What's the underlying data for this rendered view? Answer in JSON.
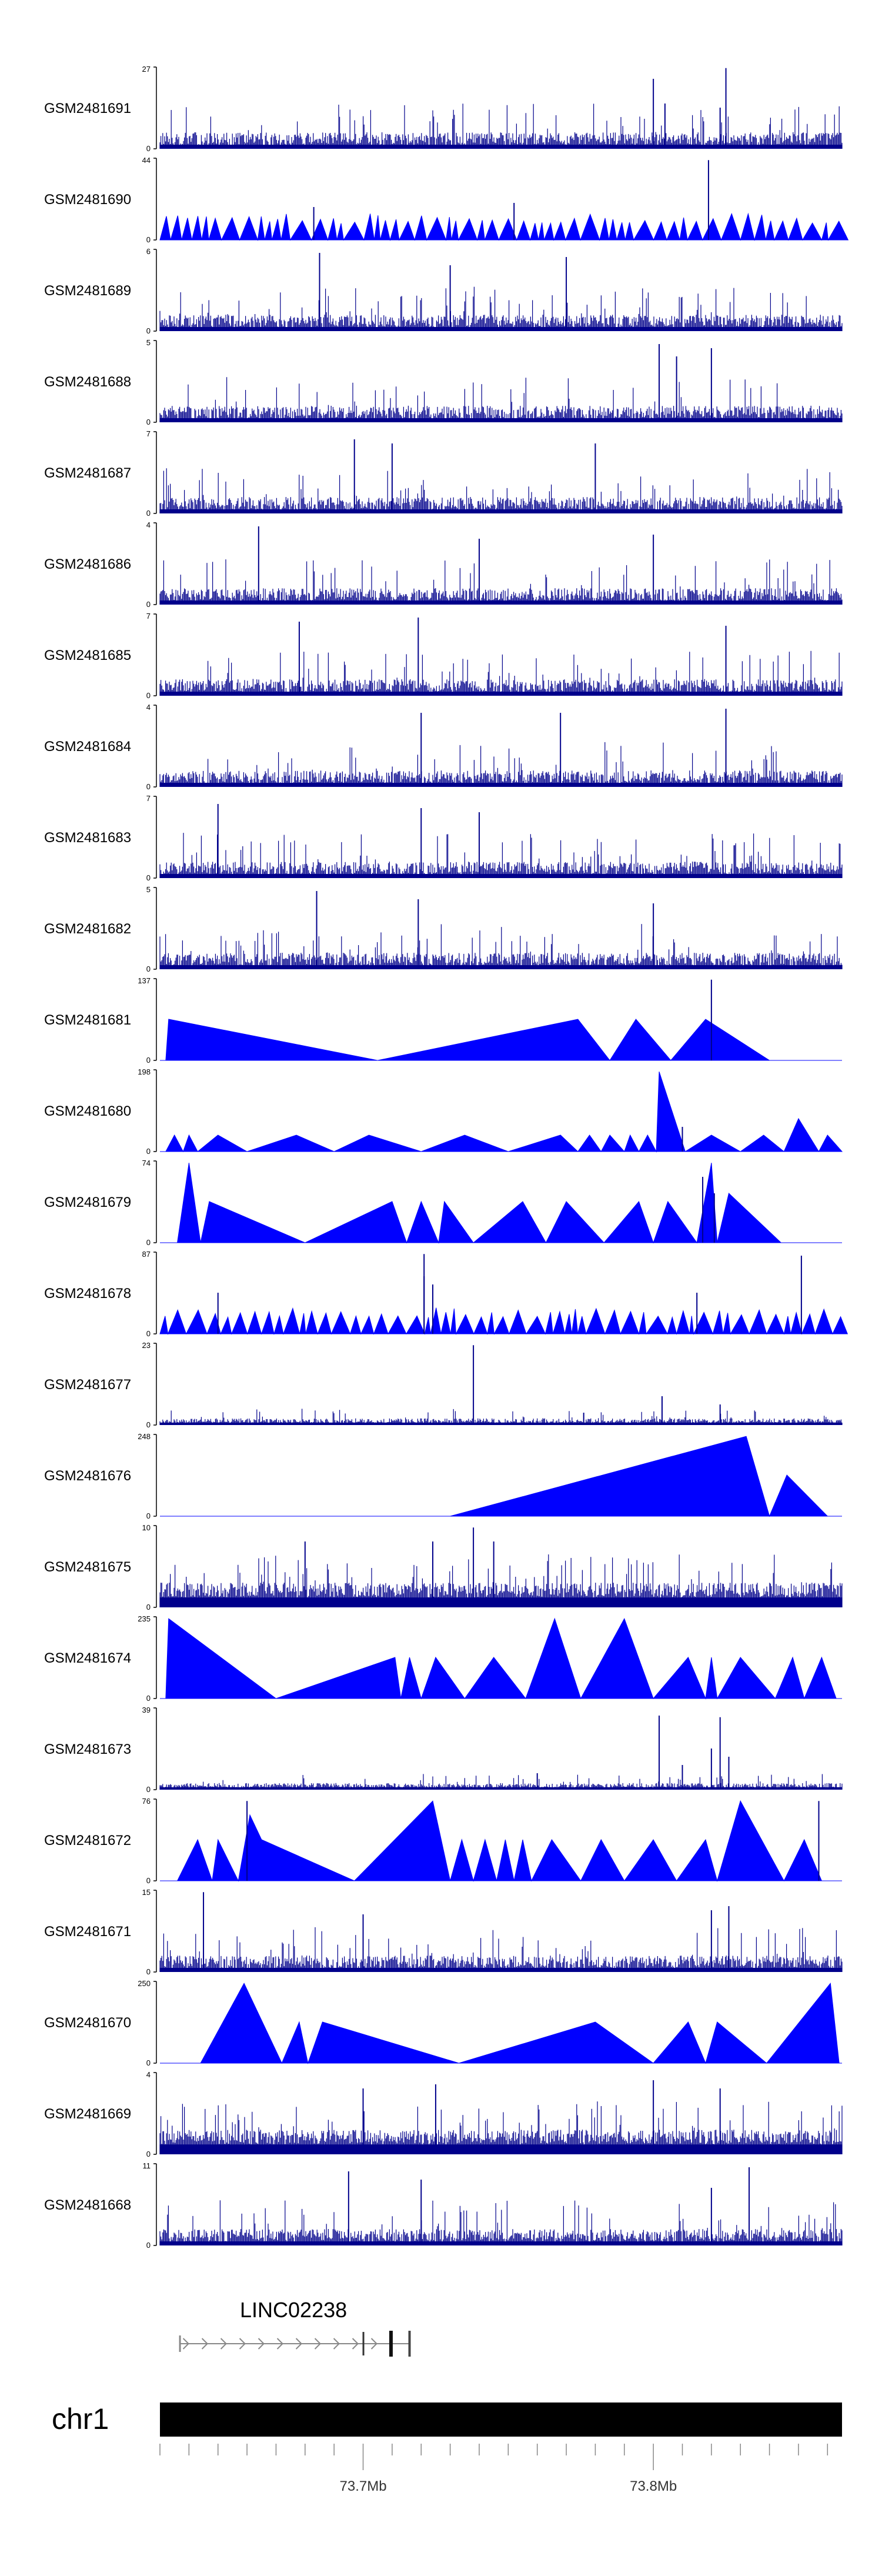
{
  "chart_data": {
    "type": "area",
    "title": "",
    "x_axis": {
      "chromosome": "chr1",
      "range": [
        73.63,
        73.865
      ],
      "units": "Mb",
      "tick_labels": [
        {
          "value": 73.7,
          "label": "73.7Mb"
        },
        {
          "value": 73.8,
          "label": "73.8Mb"
        }
      ]
    },
    "gene": {
      "name": "LINC02238",
      "start": 73.637,
      "end": 73.716,
      "strand": "+"
    },
    "tracks": [
      {
        "name": "GSM2481691",
        "ymax": 27,
        "kind": "dense",
        "peaks": [
          [
            73.8,
            0.85
          ],
          [
            73.804,
            0.55
          ],
          [
            73.825,
            0.98
          ],
          [
            73.823,
            0.5
          ]
        ]
      },
      {
        "name": "GSM2481690",
        "ymax": 44,
        "kind": "sawtooth",
        "peaks": [
          [
            73.683,
            0.4
          ],
          [
            73.752,
            0.45
          ],
          [
            73.819,
            0.97
          ]
        ]
      },
      {
        "name": "GSM2481689",
        "ymax": 6,
        "kind": "dense",
        "peaks": [
          [
            73.685,
            0.95
          ],
          [
            73.77,
            0.9
          ],
          [
            73.73,
            0.8
          ]
        ]
      },
      {
        "name": "GSM2481688",
        "ymax": 5,
        "kind": "dense",
        "peaks": [
          [
            73.802,
            0.95
          ],
          [
            73.82,
            0.9
          ],
          [
            73.808,
            0.8
          ]
        ]
      },
      {
        "name": "GSM2481687",
        "ymax": 7,
        "kind": "dense",
        "peaks": [
          [
            73.697,
            0.9
          ],
          [
            73.71,
            0.85
          ],
          [
            73.78,
            0.85
          ]
        ]
      },
      {
        "name": "GSM2481686",
        "ymax": 4,
        "kind": "dense",
        "peaks": [
          [
            73.664,
            0.95
          ],
          [
            73.74,
            0.8
          ],
          [
            73.8,
            0.85
          ]
        ]
      },
      {
        "name": "GSM2481685",
        "ymax": 7,
        "kind": "dense",
        "peaks": [
          [
            73.678,
            0.9
          ],
          [
            73.719,
            0.95
          ],
          [
            73.825,
            0.85
          ]
        ]
      },
      {
        "name": "GSM2481684",
        "ymax": 4,
        "kind": "dense",
        "peaks": [
          [
            73.72,
            0.9
          ],
          [
            73.768,
            0.9
          ],
          [
            73.825,
            0.95
          ]
        ]
      },
      {
        "name": "GSM2481683",
        "ymax": 7,
        "kind": "dense",
        "peaks": [
          [
            73.65,
            0.9
          ],
          [
            73.72,
            0.85
          ],
          [
            73.74,
            0.8
          ]
        ]
      },
      {
        "name": "GSM2481682",
        "ymax": 5,
        "kind": "dense",
        "peaks": [
          [
            73.684,
            0.95
          ],
          [
            73.719,
            0.85
          ],
          [
            73.8,
            0.8
          ]
        ]
      },
      {
        "name": "GSM2481681",
        "ymax": 137,
        "kind": "blocks",
        "points": [
          [
            73.632,
            0
          ],
          [
            73.633,
            0.5
          ],
          [
            73.705,
            0
          ],
          [
            73.774,
            0.5
          ],
          [
            73.785,
            0
          ],
          [
            73.794,
            0.5
          ],
          [
            73.806,
            0
          ],
          [
            73.818,
            0.5
          ],
          [
            73.84,
            0
          ]
        ],
        "peaks": [
          [
            73.82,
            0.98
          ]
        ]
      },
      {
        "name": "GSM2481680",
        "ymax": 198,
        "kind": "blocks",
        "points": [
          [
            73.632,
            0
          ],
          [
            73.635,
            0.2
          ],
          [
            73.638,
            0
          ],
          [
            73.64,
            0.2
          ],
          [
            73.643,
            0
          ],
          [
            73.65,
            0.2
          ],
          [
            73.66,
            0
          ],
          [
            73.677,
            0.2
          ],
          [
            73.69,
            0
          ],
          [
            73.702,
            0.2
          ],
          [
            73.72,
            0
          ],
          [
            73.735,
            0.2
          ],
          [
            73.75,
            0
          ],
          [
            73.768,
            0.2
          ],
          [
            73.774,
            0
          ],
          [
            73.778,
            0.2
          ],
          [
            73.782,
            0
          ],
          [
            73.785,
            0.2
          ],
          [
            73.79,
            0
          ],
          [
            73.792,
            0.2
          ],
          [
            73.795,
            0
          ],
          [
            73.798,
            0.2
          ],
          [
            73.801,
            0
          ],
          [
            73.802,
            0.97
          ],
          [
            73.811,
            0
          ],
          [
            73.82,
            0.2
          ],
          [
            73.83,
            0
          ],
          [
            73.838,
            0.2
          ],
          [
            73.845,
            0
          ],
          [
            73.85,
            0.4
          ],
          [
            73.857,
            0
          ],
          [
            73.86,
            0.2
          ],
          [
            73.865,
            0
          ]
        ],
        "peaks": [
          [
            73.81,
            0.3
          ]
        ]
      },
      {
        "name": "GSM2481679",
        "ymax": 74,
        "kind": "blocks",
        "points": [
          [
            73.636,
            0
          ],
          [
            73.64,
            0.97
          ],
          [
            73.644,
            0
          ],
          [
            73.647,
            0.5
          ],
          [
            73.68,
            0
          ],
          [
            73.71,
            0.5
          ],
          [
            73.715,
            0
          ],
          [
            73.72,
            0.5
          ],
          [
            73.726,
            0
          ],
          [
            73.728,
            0.5
          ],
          [
            73.738,
            0
          ],
          [
            73.755,
            0.5
          ],
          [
            73.763,
            0
          ],
          [
            73.77,
            0.5
          ],
          [
            73.783,
            0
          ],
          [
            73.795,
            0.5
          ],
          [
            73.8,
            0
          ],
          [
            73.805,
            0.5
          ],
          [
            73.815,
            0
          ],
          [
            73.82,
            0.97
          ],
          [
            73.822,
            0
          ],
          [
            73.826,
            0.6
          ],
          [
            73.844,
            0
          ]
        ],
        "peaks": [
          [
            73.817,
            0.8
          ],
          [
            73.821,
            0.6
          ]
        ]
      },
      {
        "name": "GSM2481678",
        "ymax": 87,
        "kind": "sawtooth",
        "peaks": [
          [
            73.721,
            0.97
          ],
          [
            73.721,
            0.7
          ],
          [
            73.724,
            0.6
          ],
          [
            73.815,
            0.5
          ],
          [
            73.851,
            0.95
          ],
          [
            73.65,
            0.5
          ]
        ]
      },
      {
        "name": "GSM2481677",
        "ymax": 23,
        "kind": "lowdense",
        "peaks": [
          [
            73.738,
            0.97
          ],
          [
            73.803,
            0.35
          ],
          [
            73.823,
            0.25
          ],
          [
            73.776,
            0.15
          ]
        ]
      },
      {
        "name": "GSM2481676",
        "ymax": 248,
        "kind": "blocks",
        "points": [
          [
            73.73,
            0
          ],
          [
            73.832,
            0.97
          ],
          [
            73.84,
            0
          ],
          [
            73.846,
            0.5
          ],
          [
            73.86,
            0
          ]
        ],
        "peaks": []
      },
      {
        "name": "GSM2481675",
        "ymax": 10,
        "kind": "densehigh",
        "peaks": [
          [
            73.738,
            0.97
          ],
          [
            73.68,
            0.8
          ],
          [
            73.724,
            0.8
          ],
          [
            73.745,
            0.8
          ]
        ]
      },
      {
        "name": "GSM2481674",
        "ymax": 235,
        "kind": "blocks",
        "points": [
          [
            73.632,
            0
          ],
          [
            73.633,
            0.97
          ],
          [
            73.67,
            0
          ],
          [
            73.711,
            0.5
          ],
          [
            73.713,
            0
          ],
          [
            73.716,
            0.5
          ],
          [
            73.72,
            0
          ],
          [
            73.725,
            0.5
          ],
          [
            73.735,
            0
          ],
          [
            73.745,
            0.5
          ],
          [
            73.756,
            0
          ],
          [
            73.766,
            0.97
          ],
          [
            73.775,
            0
          ],
          [
            73.79,
            0.97
          ],
          [
            73.8,
            0
          ],
          [
            73.812,
            0.5
          ],
          [
            73.818,
            0
          ],
          [
            73.82,
            0.5
          ],
          [
            73.822,
            0
          ],
          [
            73.83,
            0.5
          ],
          [
            73.842,
            0
          ],
          [
            73.848,
            0.5
          ],
          [
            73.852,
            0
          ],
          [
            73.858,
            0.5
          ],
          [
            73.863,
            0
          ]
        ],
        "peaks": []
      },
      {
        "name": "GSM2481673",
        "ymax": 39,
        "kind": "lowdense",
        "peaks": [
          [
            73.802,
            0.9
          ],
          [
            73.823,
            0.88
          ],
          [
            73.82,
            0.5
          ],
          [
            73.81,
            0.3
          ],
          [
            73.826,
            0.4
          ],
          [
            73.76,
            0.2
          ]
        ]
      },
      {
        "name": "GSM2481672",
        "ymax": 76,
        "kind": "blocks",
        "points": [
          [
            73.636,
            0
          ],
          [
            73.643,
            0.5
          ],
          [
            73.648,
            0
          ],
          [
            73.65,
            0.5
          ],
          [
            73.657,
            0
          ],
          [
            73.661,
            0.8
          ],
          [
            73.665,
            0.5
          ],
          [
            73.697,
            0
          ],
          [
            73.724,
            0.97
          ],
          [
            73.73,
            0
          ],
          [
            73.734,
            0.5
          ],
          [
            73.738,
            0
          ],
          [
            73.742,
            0.5
          ],
          [
            73.746,
            0
          ],
          [
            73.749,
            0.5
          ],
          [
            73.752,
            0
          ],
          [
            73.755,
            0.5
          ],
          [
            73.758,
            0
          ],
          [
            73.765,
            0.5
          ],
          [
            73.775,
            0
          ],
          [
            73.782,
            0.5
          ],
          [
            73.79,
            0
          ],
          [
            73.8,
            0.5
          ],
          [
            73.808,
            0
          ],
          [
            73.818,
            0.5
          ],
          [
            73.822,
            0
          ],
          [
            73.83,
            0.97
          ],
          [
            73.845,
            0
          ],
          [
            73.852,
            0.5
          ],
          [
            73.858,
            0
          ]
        ],
        "peaks": [
          [
            73.66,
            0.97
          ],
          [
            73.857,
            0.97
          ]
        ]
      },
      {
        "name": "GSM2481671",
        "ymax": 15,
        "kind": "dense",
        "peaks": [
          [
            73.645,
            0.97
          ],
          [
            73.7,
            0.7
          ],
          [
            73.82,
            0.75
          ],
          [
            73.826,
            0.8
          ]
        ]
      },
      {
        "name": "GSM2481670",
        "ymax": 250,
        "kind": "blocks",
        "points": [
          [
            73.644,
            0
          ],
          [
            73.659,
            0.97
          ],
          [
            73.672,
            0
          ],
          [
            73.678,
            0.5
          ],
          [
            73.681,
            0
          ],
          [
            73.686,
            0.5
          ],
          [
            73.733,
            0
          ],
          [
            73.78,
            0.5
          ],
          [
            73.8,
            0
          ],
          [
            73.812,
            0.5
          ],
          [
            73.818,
            0
          ],
          [
            73.822,
            0.5
          ],
          [
            73.839,
            0
          ],
          [
            73.861,
            0.97
          ],
          [
            73.864,
            0
          ]
        ],
        "peaks": []
      },
      {
        "name": "GSM2481669",
        "ymax": 4,
        "kind": "densehigh",
        "peaks": [
          [
            73.7,
            0.8
          ],
          [
            73.725,
            0.85
          ],
          [
            73.8,
            0.9
          ],
          [
            73.823,
            0.8
          ]
        ]
      },
      {
        "name": "GSM2481668",
        "ymax": 11,
        "kind": "dense",
        "peaks": [
          [
            73.695,
            0.9
          ],
          [
            73.72,
            0.8
          ],
          [
            73.833,
            0.95
          ],
          [
            73.82,
            0.7
          ]
        ]
      }
    ]
  }
}
